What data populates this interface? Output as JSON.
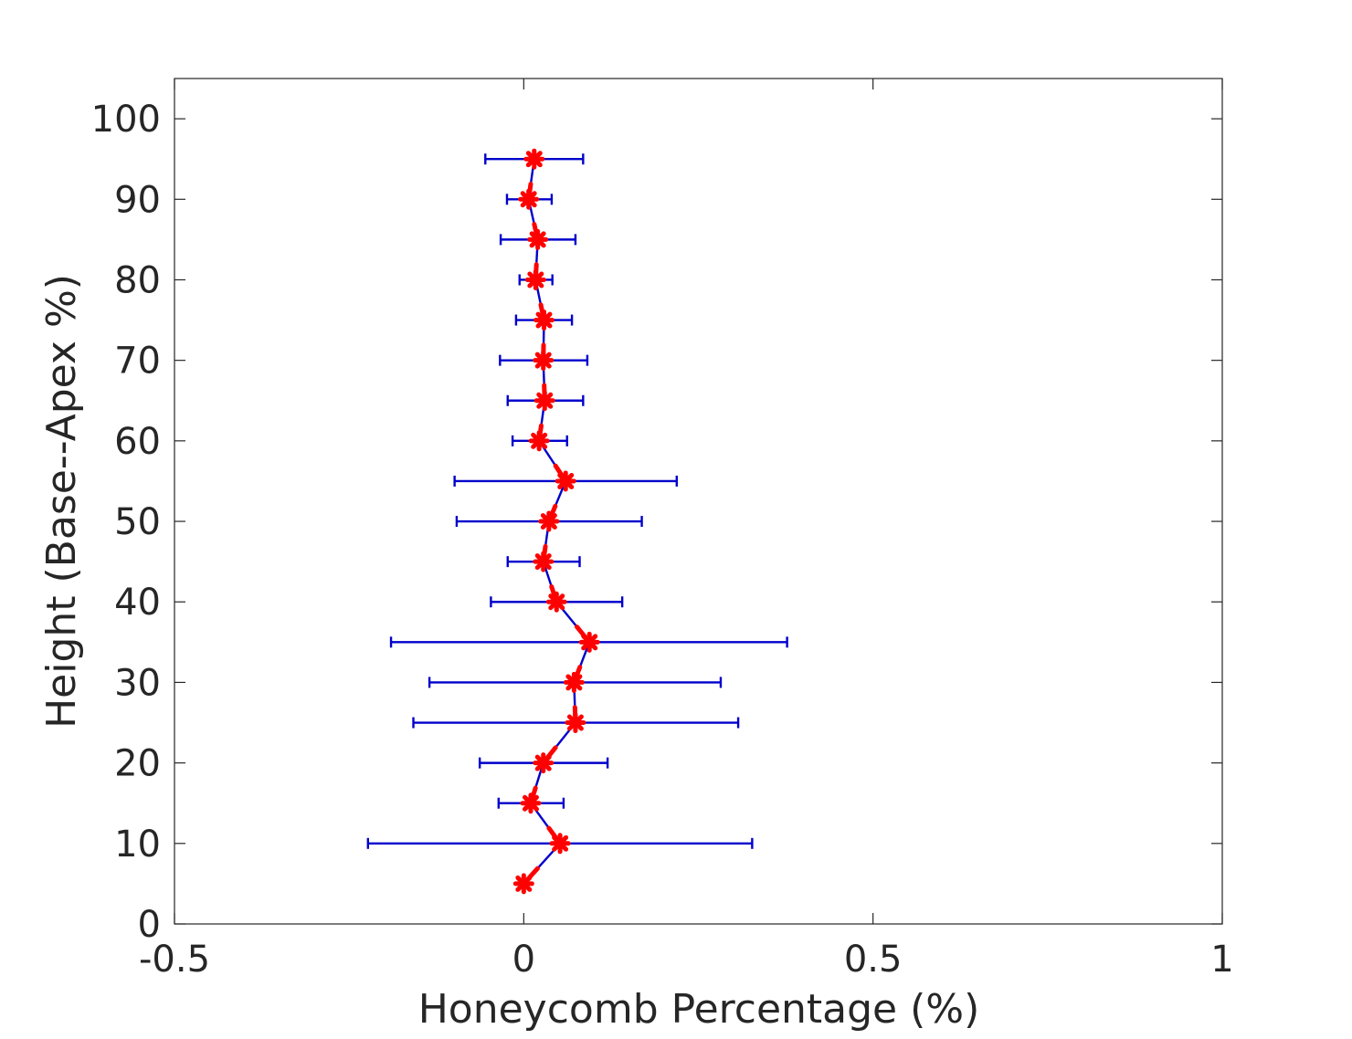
{
  "chart_data": {
    "type": "scatter",
    "title": "",
    "xlabel": "Honeycomb Percentage (%)",
    "ylabel": "Height (Base--Apex %)",
    "xlim": [
      -0.5,
      1
    ],
    "ylim": [
      0,
      105
    ],
    "xticks": [
      -0.5,
      0,
      0.5,
      1
    ],
    "xtick_labels": [
      "-0.5",
      "0",
      "0.5",
      "1"
    ],
    "yticks": [
      0,
      10,
      20,
      30,
      40,
      50,
      60,
      70,
      80,
      90,
      100
    ],
    "ytick_labels": [
      "0",
      "10",
      "20",
      "30",
      "40",
      "50",
      "60",
      "70",
      "80",
      "90",
      "100"
    ],
    "grid": false,
    "legend": "none",
    "colors": {
      "line": "#0000cc",
      "errorbar": "#0000cc",
      "marker": "#ff0000"
    },
    "series": [
      {
        "y": [
          5,
          10,
          15,
          20,
          25,
          30,
          35,
          40,
          45,
          50,
          55,
          60,
          65,
          70,
          75,
          80,
          85,
          90,
          95
        ],
        "x": [
          0.0,
          0.052,
          0.01,
          0.028,
          0.074,
          0.072,
          0.094,
          0.047,
          0.028,
          0.036,
          0.06,
          0.022,
          0.03,
          0.028,
          0.029,
          0.017,
          0.02,
          0.007,
          0.015
        ],
        "xerr_low": [
          0.0,
          -0.223,
          -0.036,
          -0.063,
          -0.158,
          -0.135,
          -0.19,
          -0.047,
          -0.023,
          -0.096,
          -0.099,
          -0.016,
          -0.023,
          -0.034,
          -0.011,
          -0.006,
          -0.033,
          -0.024,
          -0.055
        ],
        "xerr_high": [
          0.0,
          0.327,
          0.057,
          0.12,
          0.307,
          0.282,
          0.377,
          0.141,
          0.08,
          0.169,
          0.219,
          0.062,
          0.085,
          0.091,
          0.069,
          0.041,
          0.074,
          0.04,
          0.085
        ]
      }
    ]
  }
}
